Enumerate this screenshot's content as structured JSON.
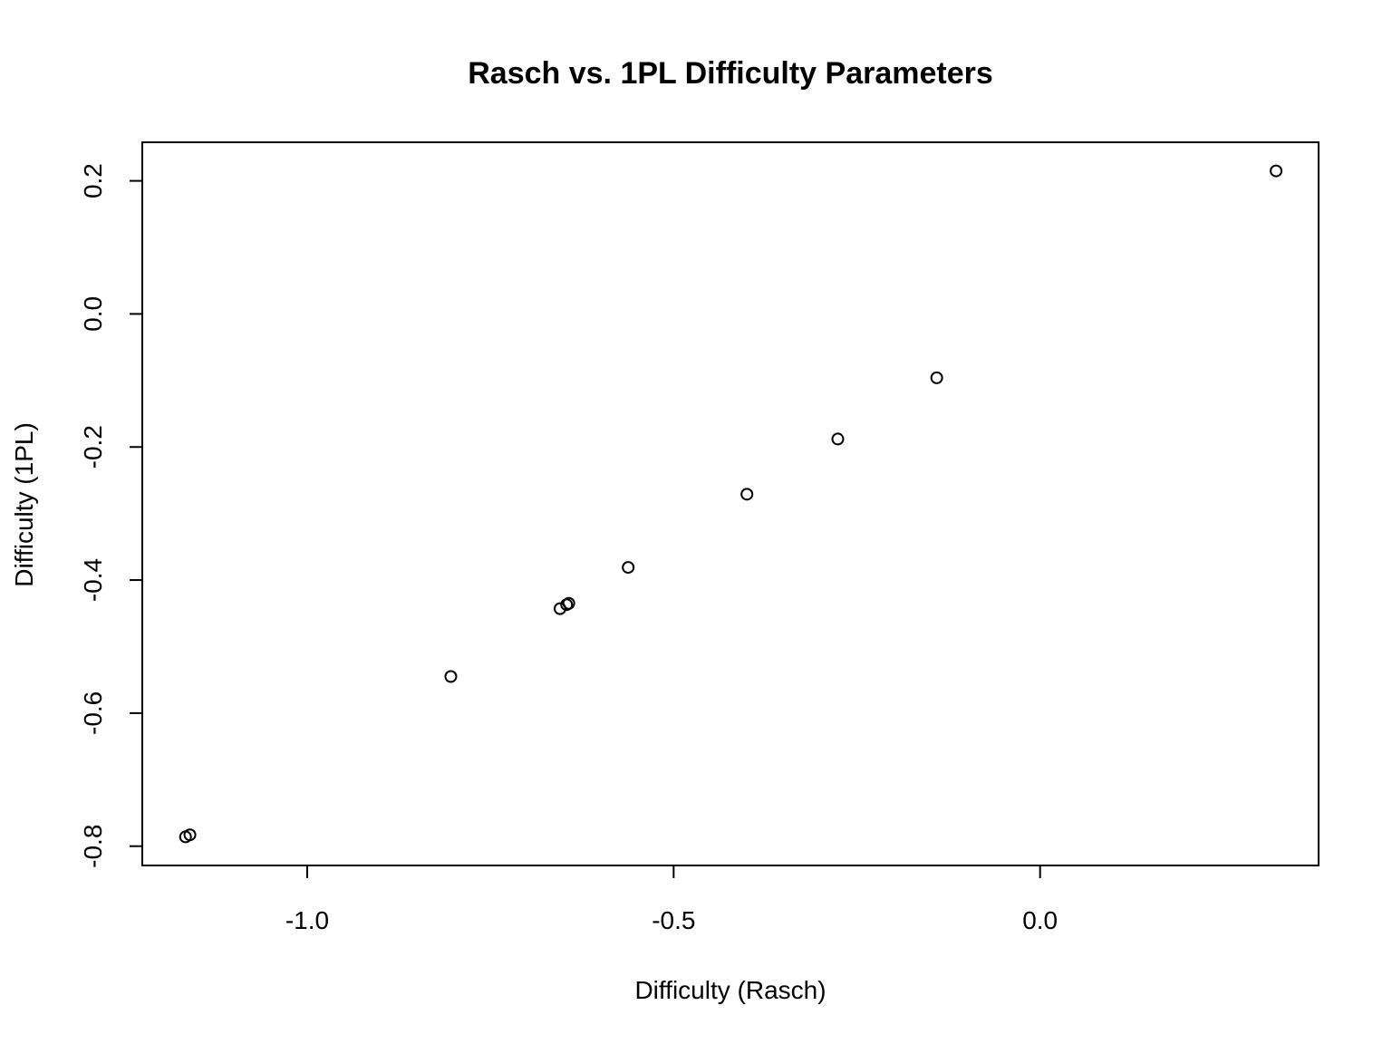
{
  "chart_data": {
    "type": "scatter",
    "title": "Rasch vs. 1PL Difficulty Parameters",
    "xlabel": "Difficulty (Rasch)",
    "ylabel": "Difficulty (1PL)",
    "xlim": [
      -1.225,
      0.38
    ],
    "ylim": [
      -0.829,
      0.258
    ],
    "x_ticks": [
      {
        "value": -1.0,
        "label": "-1.0"
      },
      {
        "value": -0.5,
        "label": "-0.5"
      },
      {
        "value": 0.0,
        "label": "0.0"
      }
    ],
    "y_ticks": [
      {
        "value": -0.8,
        "label": "-0.8"
      },
      {
        "value": -0.6,
        "label": "-0.6"
      },
      {
        "value": -0.4,
        "label": "-0.4"
      },
      {
        "value": -0.2,
        "label": "-0.2"
      },
      {
        "value": 0.0,
        "label": "0.0"
      },
      {
        "value": 0.2,
        "label": "0.2"
      }
    ],
    "grid": false,
    "legend": "none",
    "series": [
      {
        "points": [
          {
            "x": -1.166,
            "y": -0.786
          },
          {
            "x": -1.16,
            "y": -0.783
          },
          {
            "x": -0.804,
            "y": -0.545
          },
          {
            "x": -0.655,
            "y": -0.443
          },
          {
            "x": -0.646,
            "y": -0.437
          },
          {
            "x": -0.643,
            "y": -0.435
          },
          {
            "x": -0.562,
            "y": -0.381
          },
          {
            "x": -0.4,
            "y": -0.271
          },
          {
            "x": -0.276,
            "y": -0.188
          },
          {
            "x": -0.141,
            "y": -0.096
          },
          {
            "x": 0.322,
            "y": 0.215
          }
        ]
      }
    ]
  }
}
